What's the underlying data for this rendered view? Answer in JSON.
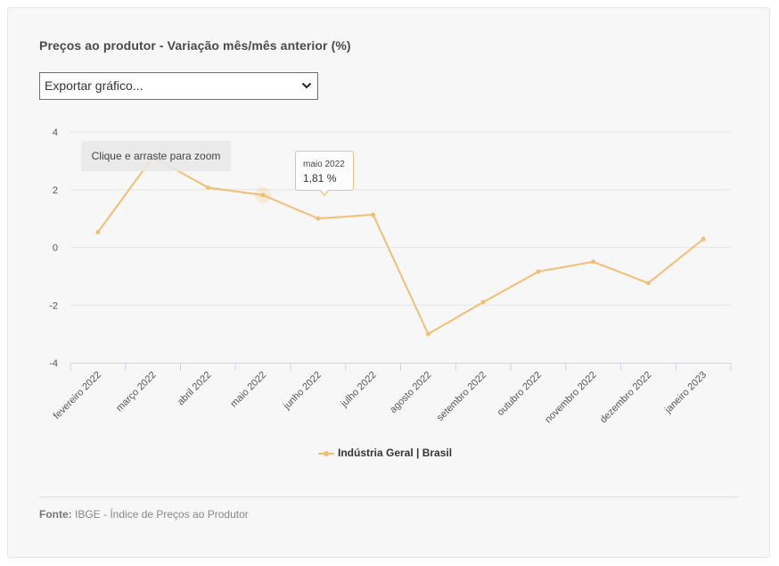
{
  "title": "Preços ao produtor - Variação mês/mês anterior (%)",
  "export_select": {
    "selected": "Exportar gráfico...",
    "icon": "chevron-down-icon"
  },
  "zoom_hint": "Clique e arraste para zoom",
  "tooltip": {
    "label": "maio 2022",
    "value": "1,81 %"
  },
  "legend": {
    "label": "Indústria Geral | Brasil"
  },
  "source": {
    "label": "Fonte:",
    "text": "IBGE - Índice de Preços ao Produtor"
  },
  "colors": {
    "series": "#f2be73",
    "tooltip_border": "#f0c07c",
    "axis": "#ccd6eb",
    "grid": "#e6e6e6"
  },
  "chart_data": {
    "type": "line",
    "categories": [
      "fevereiro 2022",
      "março 2022",
      "abril 2022",
      "maio 2022",
      "junho 2022",
      "julho 2022",
      "agosto 2022",
      "setembro 2022",
      "outubro 2022",
      "novembro 2022",
      "dezembro 2022",
      "janeiro 2023"
    ],
    "series": [
      {
        "name": "Indústria Geral | Brasil",
        "values": [
          0.53,
          3.13,
          2.07,
          1.81,
          1.0,
          1.13,
          -3.0,
          -1.9,
          -0.84,
          -0.5,
          -1.24,
          0.29
        ]
      }
    ],
    "ylim": [
      -4,
      4
    ],
    "yticks": [
      4,
      2,
      0,
      -2,
      -4
    ],
    "grid": true,
    "highlighted_category": "maio 2022",
    "legend_position": "bottom-center"
  }
}
